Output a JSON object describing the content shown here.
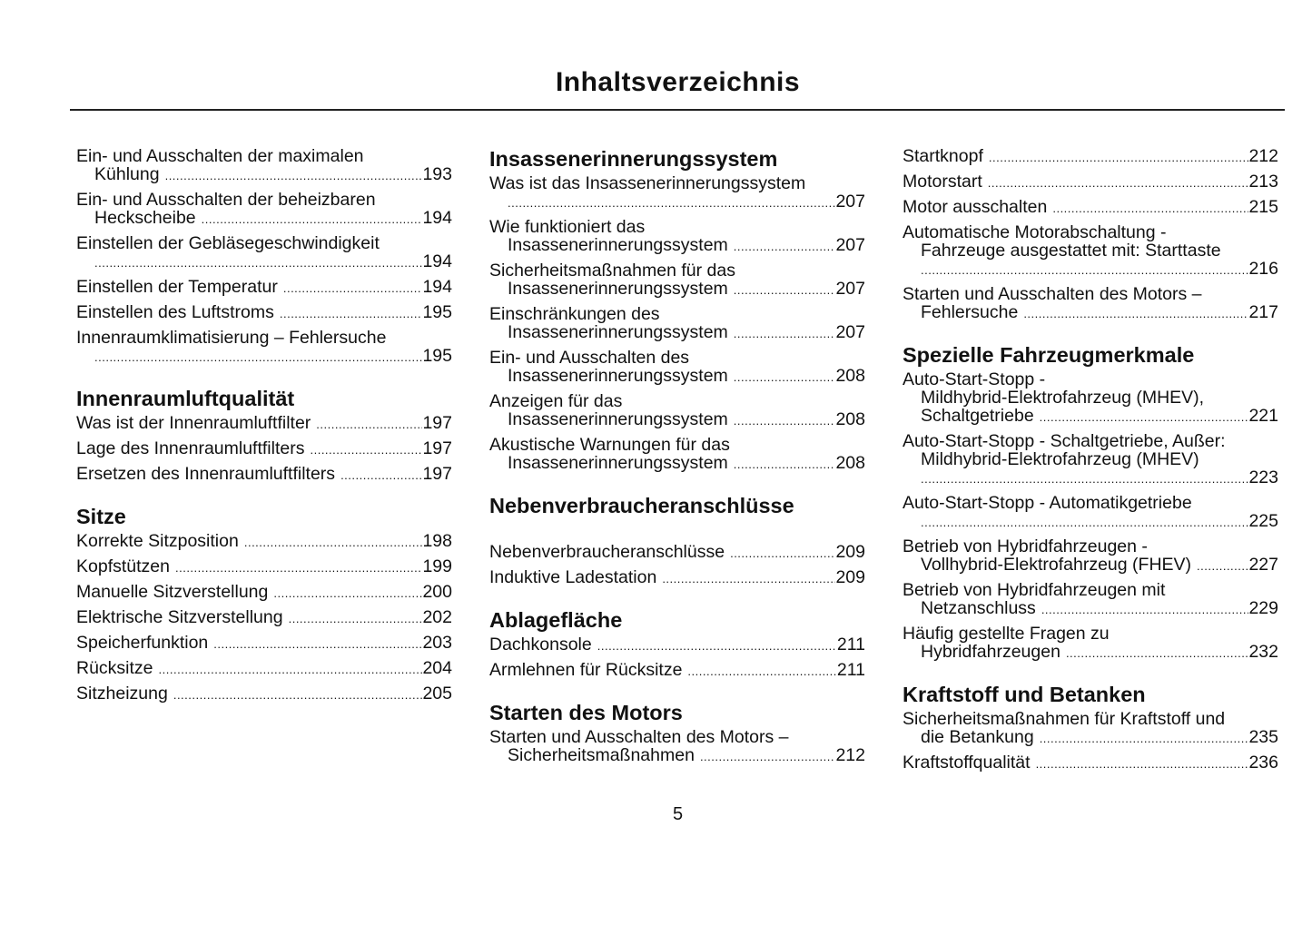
{
  "title": "Inhaltsverzeichnis",
  "page_number": "5",
  "columns": [
    [
      {
        "type": "entry",
        "lines": [
          "Ein- und Ausschalten der maximalen",
          "Kühlung"
        ],
        "page": "193"
      },
      {
        "type": "entry",
        "lines": [
          "Ein- und Ausschalten der beheizbaren",
          "Heckscheibe"
        ],
        "page": "194"
      },
      {
        "type": "entry",
        "lines": [
          "Einstellen der Gebläsegeschwindigkeit",
          ""
        ],
        "page": "194"
      },
      {
        "type": "entry",
        "lines": [
          "Einstellen der Temperatur"
        ],
        "page": "194"
      },
      {
        "type": "entry",
        "lines": [
          "Einstellen des Luftstroms"
        ],
        "page": "195"
      },
      {
        "type": "entry",
        "lines": [
          "Innenraumklimatisierung – Fehlersuche",
          ""
        ],
        "page": "195"
      },
      {
        "type": "heading",
        "text": "Innenraumluftqualität"
      },
      {
        "type": "entry",
        "lines": [
          "Was ist der Innenraumluftfilter"
        ],
        "page": "197"
      },
      {
        "type": "entry",
        "lines": [
          "Lage des Innenraumluftfilters"
        ],
        "page": "197"
      },
      {
        "type": "entry",
        "lines": [
          "Ersetzen des Innenraumluftfilters"
        ],
        "page": "197"
      },
      {
        "type": "heading",
        "text": "Sitze"
      },
      {
        "type": "entry",
        "lines": [
          "Korrekte Sitzposition"
        ],
        "page": "198"
      },
      {
        "type": "entry",
        "lines": [
          "Kopfstützen"
        ],
        "page": "199"
      },
      {
        "type": "entry",
        "lines": [
          "Manuelle Sitzverstellung"
        ],
        "page": "200"
      },
      {
        "type": "entry",
        "lines": [
          "Elektrische Sitzverstellung"
        ],
        "page": "202"
      },
      {
        "type": "entry",
        "lines": [
          "Speicherfunktion"
        ],
        "page": "203"
      },
      {
        "type": "entry",
        "lines": [
          "Rücksitze"
        ],
        "page": "204"
      },
      {
        "type": "entry",
        "lines": [
          "Sitzheizung"
        ],
        "page": "205"
      }
    ],
    [
      {
        "type": "heading",
        "text": "Insassenerinnerungssystem"
      },
      {
        "type": "entry",
        "lines": [
          "Was ist das Insassenerinnerungssystem",
          ""
        ],
        "page": "207"
      },
      {
        "type": "entry",
        "lines": [
          "Wie funktioniert das",
          "Insassenerinnerungssystem"
        ],
        "page": "207"
      },
      {
        "type": "entry",
        "lines": [
          "Sicherheitsmaßnahmen für das",
          "Insassenerinnerungssystem"
        ],
        "page": "207"
      },
      {
        "type": "entry",
        "lines": [
          "Einschränkungen des",
          "Insassenerinnerungssystem"
        ],
        "page": "207"
      },
      {
        "type": "entry",
        "lines": [
          "Ein- und Ausschalten des",
          "Insassenerinnerungssystem"
        ],
        "page": "208"
      },
      {
        "type": "entry",
        "lines": [
          "Anzeigen für das",
          "Insassenerinnerungssystem"
        ],
        "page": "208"
      },
      {
        "type": "entry",
        "lines": [
          "Akustische Warnungen für das",
          "Insassenerinnerungssystem"
        ],
        "page": "208"
      },
      {
        "type": "heading",
        "text": "Nebenverbraucheranschlüsse",
        "gap": true
      },
      {
        "type": "entry",
        "lines": [
          "Nebenverbraucheranschlüsse"
        ],
        "page": "209"
      },
      {
        "type": "entry",
        "lines": [
          "Induktive Ladestation"
        ],
        "page": "209"
      },
      {
        "type": "heading",
        "text": "Ablagefläche"
      },
      {
        "type": "entry",
        "lines": [
          "Dachkonsole"
        ],
        "page": "211"
      },
      {
        "type": "entry",
        "lines": [
          "Armlehnen für Rücksitze"
        ],
        "page": "211"
      },
      {
        "type": "heading",
        "text": "Starten des Motors"
      },
      {
        "type": "entry",
        "lines": [
          "Starten und Ausschalten des Motors –",
          "Sicherheitsmaßnahmen"
        ],
        "page": "212"
      }
    ],
    [
      {
        "type": "entry",
        "lines": [
          "Startknopf"
        ],
        "page": "212"
      },
      {
        "type": "entry",
        "lines": [
          "Motorstart"
        ],
        "page": "213"
      },
      {
        "type": "entry",
        "lines": [
          "Motor ausschalten"
        ],
        "page": "215"
      },
      {
        "type": "entry",
        "lines": [
          "Automatische Motorabschaltung -",
          "Fahrzeuge ausgestattet mit: Starttaste",
          ""
        ],
        "page": "216"
      },
      {
        "type": "entry",
        "lines": [
          "Starten und Ausschalten des Motors –",
          "Fehlersuche"
        ],
        "page": "217"
      },
      {
        "type": "heading",
        "text": "Spezielle Fahrzeugmerkmale"
      },
      {
        "type": "entry",
        "lines": [
          "Auto-Start-Stopp -",
          "Mildhybrid-Elektrofahrzeug (MHEV),",
          "Schaltgetriebe"
        ],
        "page": "221"
      },
      {
        "type": "entry",
        "lines": [
          "Auto-Start-Stopp - Schaltgetriebe, Außer:",
          "Mildhybrid-Elektrofahrzeug (MHEV)",
          ""
        ],
        "page": "223"
      },
      {
        "type": "entry",
        "lines": [
          "Auto-Start-Stopp - Automatikgetriebe",
          ""
        ],
        "page": "225"
      },
      {
        "type": "entry",
        "lines": [
          "Betrieb von Hybridfahrzeugen -",
          "Vollhybrid-Elektrofahrzeug (FHEV)"
        ],
        "page": "227"
      },
      {
        "type": "entry",
        "lines": [
          "Betrieb von Hybridfahrzeugen mit",
          "Netzanschluss"
        ],
        "page": "229"
      },
      {
        "type": "entry",
        "lines": [
          "Häufig gestellte Fragen zu",
          "Hybridfahrzeugen"
        ],
        "page": "232"
      },
      {
        "type": "heading",
        "text": "Kraftstoff und Betanken"
      },
      {
        "type": "entry",
        "lines": [
          "Sicherheitsmaßnahmen für Kraftstoff und",
          "die Betankung"
        ],
        "page": "235"
      },
      {
        "type": "entry",
        "lines": [
          "Kraftstoffqualität"
        ],
        "page": "236"
      }
    ]
  ]
}
